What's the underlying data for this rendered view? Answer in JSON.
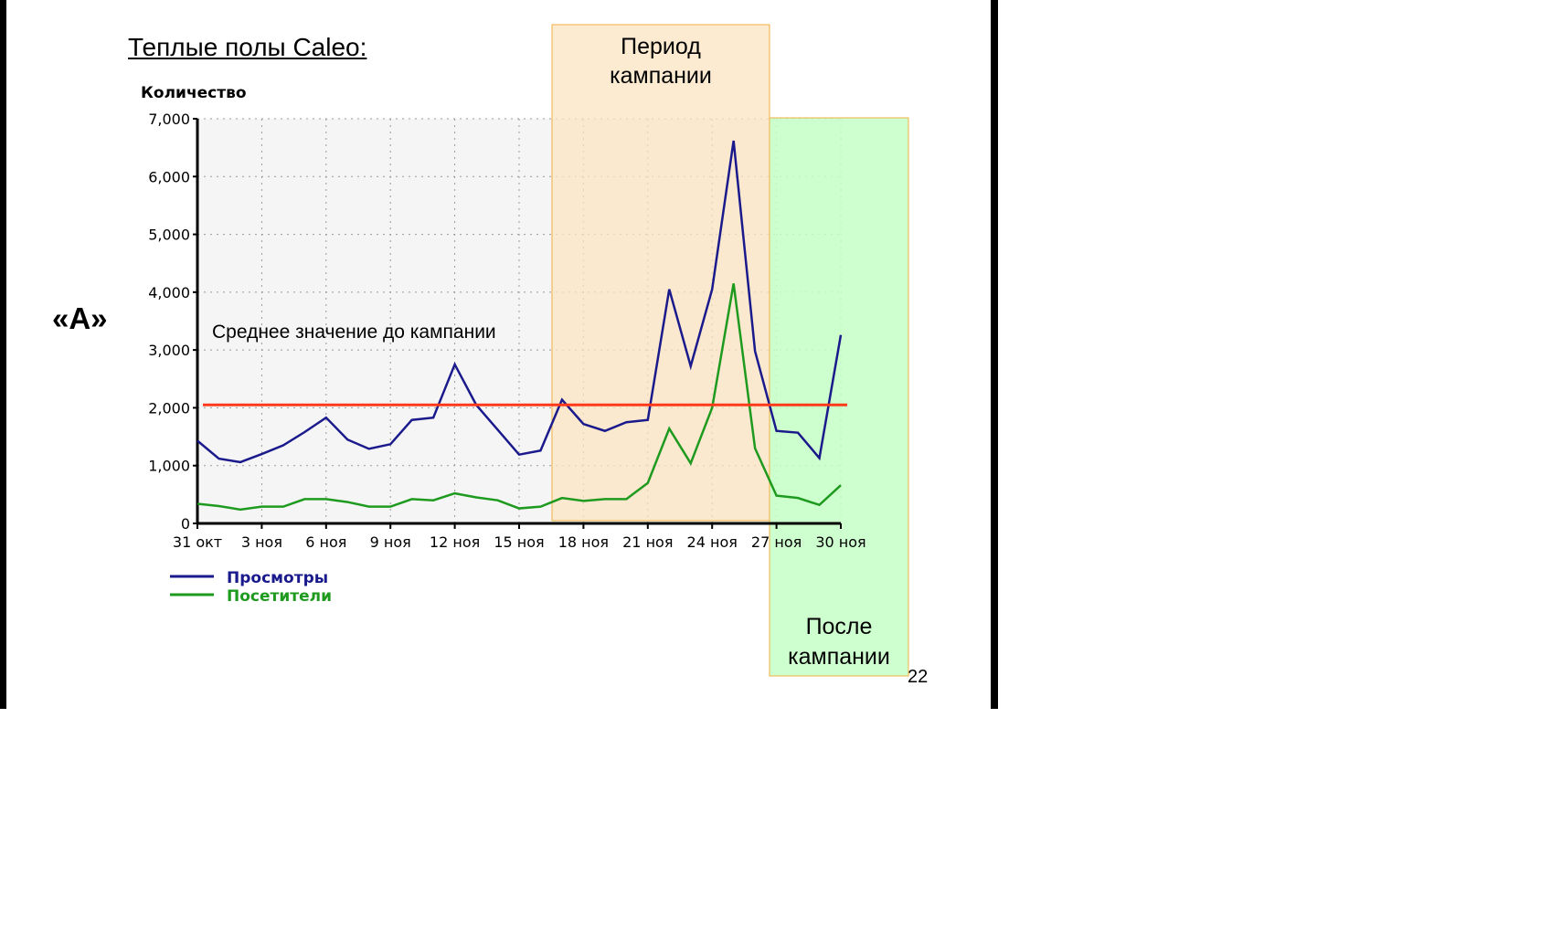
{
  "slide": {
    "title": "Теплые полы Caleo:",
    "label": "«A»",
    "page_number": "22"
  },
  "chart_data": {
    "type": "line",
    "ylabel": "Количество",
    "ylim": [
      0,
      7000
    ],
    "yticks": [
      0,
      1000,
      2000,
      3000,
      4000,
      5000,
      6000,
      7000
    ],
    "ytick_labels": [
      "0",
      "1,000",
      "2,000",
      "3,000",
      "4,000",
      "5,000",
      "6,000",
      "7,000"
    ],
    "x": [
      "31 окт",
      "1 ноя",
      "2 ноя",
      "3 ноя",
      "4 ноя",
      "5 ноя",
      "6 ноя",
      "7 ноя",
      "8 ноя",
      "9 ноя",
      "10 ноя",
      "11 ноя",
      "12 ноя",
      "13 ноя",
      "14 ноя",
      "15 ноя",
      "16 ноя",
      "17 ноя",
      "18 ноя",
      "19 ноя",
      "20 ноя",
      "21 ноя",
      "22 ноя",
      "23 ноя",
      "24 ноя",
      "25 ноя",
      "26 ноя",
      "27 ноя",
      "28 ноя",
      "29 ноя",
      "30 ноя"
    ],
    "xtick_labels": [
      "31 окт",
      "3 ноя",
      "6 ноя",
      "9 ноя",
      "12 ноя",
      "15 ноя",
      "18 ноя",
      "21 ноя",
      "24 ноя",
      "27 ноя",
      "30 ноя"
    ],
    "grid": true,
    "legend_placement": "bottom-left",
    "series": [
      {
        "name": "Просмотры",
        "color": "#1a1a8c",
        "values": [
          1430,
          1120,
          1060,
          1200,
          1350,
          1580,
          1830,
          1450,
          1290,
          1370,
          1790,
          1830,
          2750,
          2050,
          1620,
          1190,
          1260,
          2140,
          1720,
          1600,
          1750,
          1790,
          4050,
          2720,
          4050,
          6620,
          2980,
          1600,
          1570,
          1130,
          3260
        ]
      },
      {
        "name": "Посетители",
        "color": "#1e9a1e",
        "values": [
          340,
          300,
          240,
          290,
          290,
          420,
          420,
          370,
          290,
          290,
          420,
          400,
          520,
          450,
          400,
          260,
          290,
          440,
          390,
          420,
          420,
          700,
          1640,
          1040,
          2000,
          4150,
          1300,
          480,
          440,
          320,
          660
        ]
      }
    ],
    "reference_line": {
      "label": "Среднее значение до кампании",
      "value": 2050,
      "color": "#ff3a1a"
    },
    "regions": [
      {
        "label_lines": [
          "Период",
          "кампании"
        ],
        "color": "#fbe3c2"
      },
      {
        "label_lines": [
          "После",
          "кампании"
        ],
        "color": "#c6ffc6"
      }
    ]
  }
}
